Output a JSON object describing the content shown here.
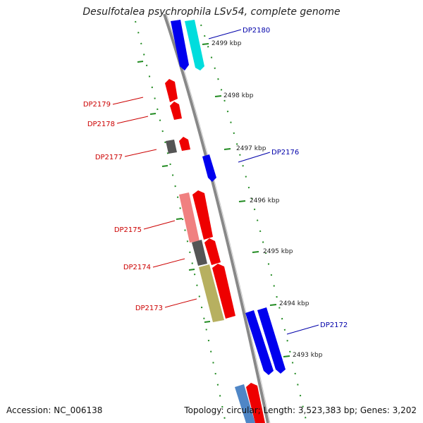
{
  "title": "Desulfotalea psychrophila LSv54, complete genome",
  "footer": {
    "accession": "Accession: NC_006138",
    "stats": "Topology: circular; Length: 3,523,383 bp; Genes: 3,202"
  },
  "colors": {
    "forward_gene": "#ff0000",
    "reverse_gene": "#0000ff",
    "label_forward": "#cc0000",
    "label_reverse": "#0000aa",
    "tick": "#228b22",
    "backbone": "#888888"
  },
  "scale_labels": [
    "2499 kbp",
    "2498 kbp",
    "2497 kbp",
    "2496 kbp",
    "2495 kbp",
    "2494 kbp",
    "2493 kbp"
  ],
  "gene_labels": [
    "DP2180",
    "DP2179",
    "DP2178",
    "DP2177",
    "DP2176",
    "DP2175",
    "DP2174",
    "DP2173",
    "DP2172"
  ]
}
